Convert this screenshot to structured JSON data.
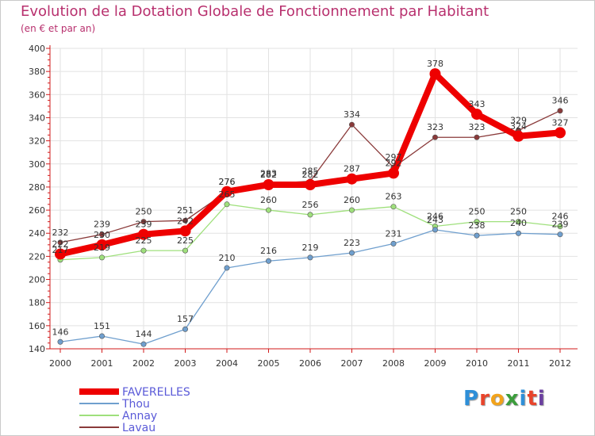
{
  "title": "Evolution de la Dotation Globale de Fonctionnement par Habitant",
  "subtitle": "(en € et par an)",
  "logo_text": "Proxiti",
  "colors": {
    "title": "#b8306e",
    "axis": "#d21a1a",
    "grid": "#e2e2e2"
  },
  "chart_data": {
    "type": "line",
    "x": [
      "2000",
      "2001",
      "2002",
      "2003",
      "2004",
      "2005",
      "2006",
      "2007",
      "2008",
      "2009",
      "2010",
      "2011",
      "2012"
    ],
    "ylim": [
      140,
      400
    ],
    "yticks": [
      140,
      160,
      180,
      200,
      220,
      240,
      260,
      280,
      300,
      320,
      340,
      360,
      380,
      400
    ],
    "grid": true,
    "legend_position": "bottom-left",
    "series": [
      {
        "name": "FAVERELLES",
        "color": "#ee0000",
        "values": [
          222,
          230,
          239,
          242,
          276,
          282,
          282,
          287,
          292,
          378,
          343,
          324,
          327
        ]
      },
      {
        "name": "Thou",
        "color": "#6f9fce",
        "values": [
          146,
          151,
          144,
          157,
          210,
          216,
          219,
          223,
          231,
          243,
          238,
          240,
          239
        ]
      },
      {
        "name": "Annay",
        "color": "#9fe07c",
        "values": [
          217,
          219,
          225,
          225,
          265,
          260,
          256,
          260,
          263,
          246,
          250,
          250,
          246
        ]
      },
      {
        "name": "Lavau",
        "color": "#8a3a3a",
        "values": [
          232,
          239,
          250,
          251,
          276,
          283,
          285,
          334,
          297,
          323,
          323,
          329,
          346
        ]
      }
    ]
  }
}
